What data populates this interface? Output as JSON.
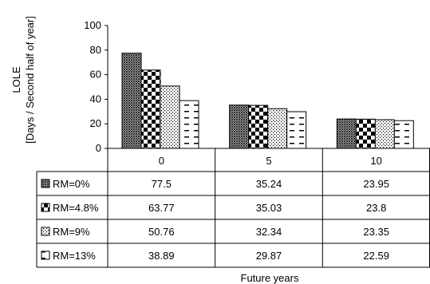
{
  "chart_data": {
    "type": "bar",
    "categories": [
      "0",
      "5",
      "10"
    ],
    "series": [
      {
        "name": "RM=0%",
        "values": [
          77.5,
          35.24,
          23.95
        ]
      },
      {
        "name": "RM=4.8%",
        "values": [
          63.77,
          35.03,
          23.8
        ]
      },
      {
        "name": "RM=9%",
        "values": [
          50.76,
          32.34,
          23.35
        ]
      },
      {
        "name": "RM=13%",
        "values": [
          38.89,
          29.87,
          22.59
        ]
      }
    ],
    "title": "",
    "xlabel": "Future years",
    "ylabel_lines": [
      "LOLE",
      "[Days / Second half of year]"
    ],
    "ylim": [
      0,
      100
    ],
    "yticks": [
      0,
      20,
      40,
      60,
      80,
      100
    ],
    "grid": false,
    "legend": "data-table-left",
    "series_patterns": [
      "diagonal-hatch",
      "checkerboard",
      "dots",
      "dashes"
    ]
  }
}
